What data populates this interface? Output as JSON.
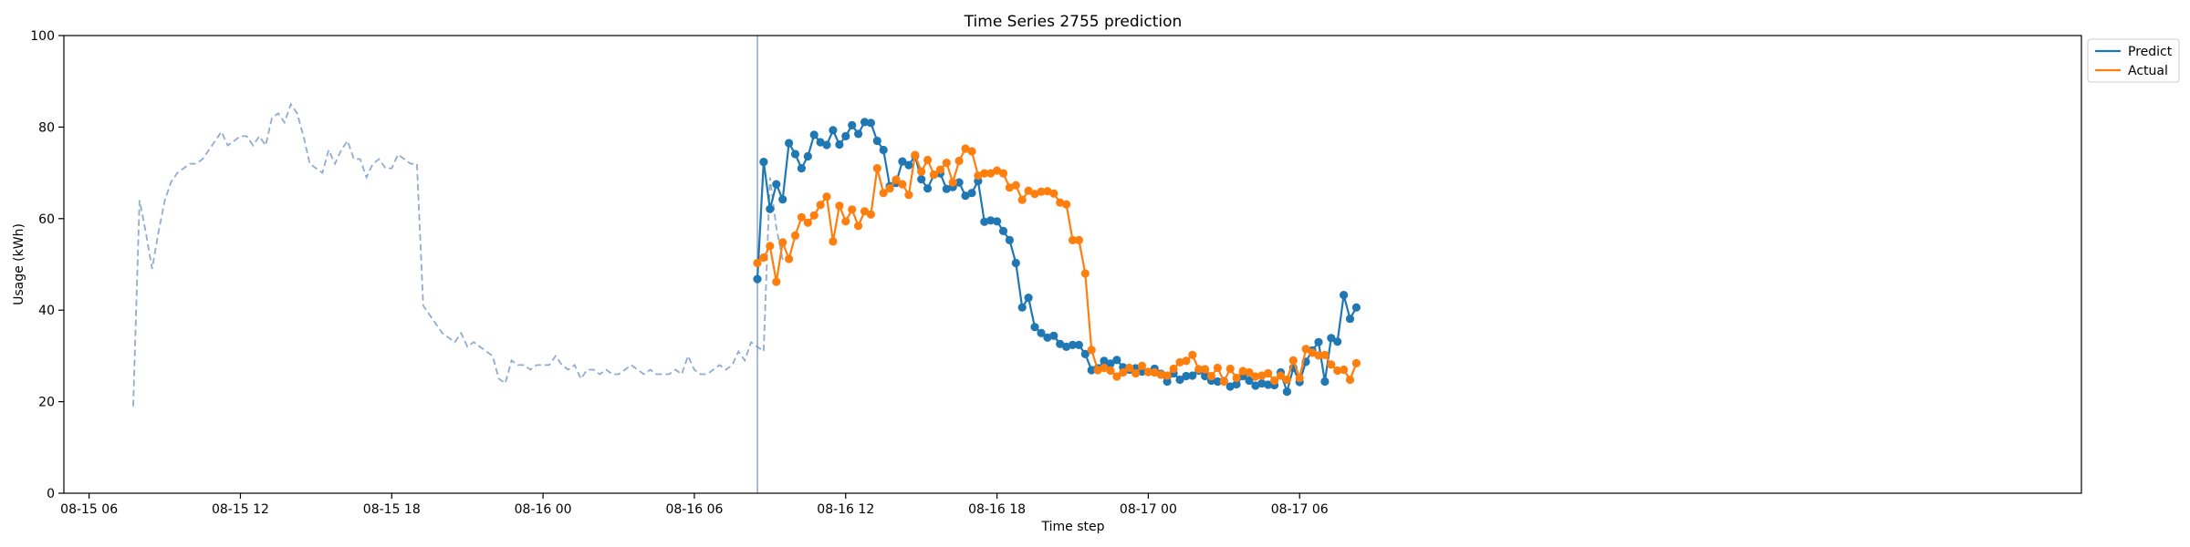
{
  "chart_data": {
    "type": "line",
    "title": "Time Series 2755 prediction",
    "xlabel": "Time step",
    "ylabel": "Usage (kWh)",
    "ylim": [
      0,
      100
    ],
    "yticks": [
      "0",
      "20",
      "40",
      "60",
      "80",
      "100"
    ],
    "xlim_hours": [
      -1.0,
      79.0
    ],
    "xticks": [
      {
        "label": "08-15 06",
        "hour": 0
      },
      {
        "label": "08-15 12",
        "hour": 6
      },
      {
        "label": "08-15 18",
        "hour": 12
      },
      {
        "label": "08-16 00",
        "hour": 18
      },
      {
        "label": "08-16 06",
        "hour": 24
      },
      {
        "label": "08-16 12",
        "hour": 30
      },
      {
        "label": "08-16 18",
        "hour": 36
      },
      {
        "label": "08-17 00",
        "hour": 42
      },
      {
        "label": "08-17 06",
        "hour": 48
      }
    ],
    "forecast_start_hour": 26.5,
    "history": {
      "start_hour": 1.75,
      "step_hours": 0.25,
      "color": "#92abd1",
      "values": [
        19,
        64,
        57,
        49,
        57,
        64,
        68,
        70,
        71,
        72,
        72,
        73,
        75,
        77,
        79,
        76,
        77,
        78,
        78,
        76,
        78,
        76,
        82,
        83,
        81,
        85,
        83,
        78,
        72,
        71,
        70,
        75,
        72,
        75,
        77,
        73,
        73,
        69,
        72,
        73,
        71,
        71,
        74,
        73,
        72,
        72,
        41,
        39,
        37,
        35,
        34,
        33,
        35,
        32,
        33,
        32,
        31,
        30,
        25,
        24,
        29,
        28,
        28,
        27,
        28,
        28,
        28,
        30,
        28,
        27,
        28,
        25,
        27,
        27,
        26,
        27,
        26,
        26,
        27,
        28,
        27,
        26,
        27,
        26,
        26,
        26,
        27,
        26,
        30,
        27,
        26,
        26,
        27,
        28,
        27,
        28,
        31,
        29,
        33,
        32,
        31,
        69,
        58,
        51,
        51
      ]
    },
    "series": [
      {
        "name": "Predict",
        "color": "#1f77b4",
        "start_hour": 26.5,
        "step_hours": 0.25,
        "values": [
          46.8,
          72.4,
          62.1,
          67.5,
          64.2,
          76.5,
          74.1,
          71.0,
          73.6,
          78.3,
          76.7,
          76.1,
          79.3,
          76.2,
          78.0,
          80.4,
          78.5,
          81.1,
          80.9,
          77.0,
          75.0,
          67.1,
          67.8,
          72.5,
          71.7,
          73.7,
          68.6,
          66.6,
          69.6,
          69.9,
          66.5,
          66.9,
          67.9,
          65.0,
          65.6,
          68.2,
          59.3,
          59.6,
          59.4,
          57.3,
          55.3,
          50.3,
          40.6,
          42.7,
          36.3,
          35.0,
          34.0,
          34.4,
          32.6,
          32.0,
          32.4,
          32.4,
          30.4,
          26.9,
          27.3,
          28.9,
          28.3,
          29.1,
          27.5,
          27.0,
          27.3,
          26.6,
          26.5,
          27.2,
          26.1,
          24.4,
          26.2,
          24.8,
          25.6,
          25.7,
          26.8,
          25.6,
          24.6,
          24.4,
          24.5,
          23.3,
          23.8,
          25.6,
          24.6,
          23.5,
          24.0,
          23.7,
          23.6,
          26.4,
          22.2,
          27.4,
          24.3,
          28.7,
          31.2,
          33.0,
          24.4,
          33.9,
          33.1,
          43.3,
          38.1,
          40.6
        ]
      },
      {
        "name": "Actual",
        "color": "#ff7f0e",
        "start_hour": 26.5,
        "step_hours": 0.25,
        "values": [
          50.3,
          51.5,
          54.0,
          46.2,
          54.8,
          51.2,
          56.3,
          60.3,
          59.1,
          60.7,
          63.0,
          64.8,
          55.0,
          62.8,
          59.4,
          62.0,
          58.4,
          61.6,
          60.9,
          71.0,
          65.6,
          66.6,
          68.5,
          67.5,
          65.2,
          73.9,
          70.3,
          72.8,
          69.6,
          70.7,
          72.2,
          67.9,
          72.6,
          75.3,
          74.7,
          69.4,
          69.9,
          69.9,
          70.5,
          69.9,
          66.8,
          67.3,
          64.1,
          66.1,
          65.4,
          65.9,
          66.0,
          65.5,
          63.5,
          63.1,
          55.3,
          55.3,
          48.0,
          31.3,
          26.9,
          27.4,
          26.8,
          25.5,
          26.4,
          27.4,
          26.2,
          27.8,
          26.5,
          26.4,
          25.9,
          25.7,
          27.2,
          28.6,
          28.9,
          30.2,
          27.1,
          27.1,
          25.6,
          27.4,
          24.4,
          27.2,
          25.2,
          26.7,
          26.4,
          25.5,
          25.7,
          26.2,
          24.6,
          25.7,
          24.8,
          29.0,
          25.2,
          31.5,
          30.7,
          30.1,
          30.2,
          28.1,
          26.8,
          27.0,
          24.8,
          28.4
        ]
      }
    ],
    "legend_position": "top-right-outside",
    "grid": false
  }
}
